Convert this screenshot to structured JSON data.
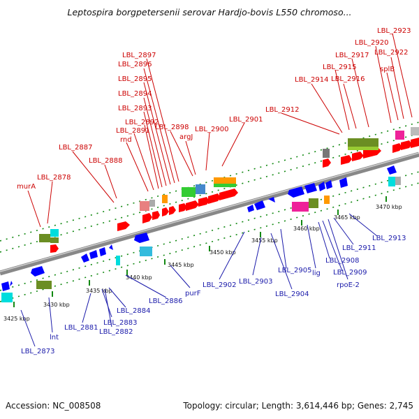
{
  "title": "Leptospira borgpetersenii serovar Hardjo-bovis L550 chromoso...",
  "footer": {
    "accession": "Accession: NC_008508",
    "summary": "Topology: circular; Length: 3,614,446 bp; Genes: 2,745"
  },
  "colors": {
    "forward_gene": "#ff0000",
    "reverse_gene": "#0000ff",
    "forward_label": "#cc0000",
    "reverse_label": "#1a1aaa",
    "backbone": "#888888",
    "tick": "#118811"
  },
  "ticks": [
    {
      "id": "t3425",
      "label": "3425 kbp"
    },
    {
      "id": "t3430",
      "label": "3430 kbp"
    },
    {
      "id": "t3435",
      "label": "3435 kbp"
    },
    {
      "id": "t3440",
      "label": "3440 kbp"
    },
    {
      "id": "t3445",
      "label": "3445 kbp"
    },
    {
      "id": "t3450",
      "label": "3450 kbp"
    },
    {
      "id": "t3455",
      "label": "3455 kbp"
    },
    {
      "id": "t3460",
      "label": "3460 kbp"
    },
    {
      "id": "t3465",
      "label": "3465 kbp"
    },
    {
      "id": "t3470",
      "label": "3470 kbp"
    }
  ],
  "top_labels": [
    {
      "id": "murA",
      "text": "murA"
    },
    {
      "id": "LBL_2878",
      "text": "LBL_2878"
    },
    {
      "id": "LBL_2887",
      "text": "LBL_2887"
    },
    {
      "id": "LBL_2888",
      "text": "LBL_2888"
    },
    {
      "id": "rnd",
      "text": "rnd"
    },
    {
      "id": "LBL_2891",
      "text": "LBL_2891"
    },
    {
      "id": "LBL_2892",
      "text": "LBL_2892"
    },
    {
      "id": "LBL_2893",
      "text": "LBL_2893"
    },
    {
      "id": "LBL_2894",
      "text": "LBL_2894"
    },
    {
      "id": "LBL_2895",
      "text": "LBL_2895"
    },
    {
      "id": "LBL_2896",
      "text": "LBL_2896"
    },
    {
      "id": "LBL_2897",
      "text": "LBL_2897"
    },
    {
      "id": "LBL_2898",
      "text": "LBL_2898"
    },
    {
      "id": "argJ",
      "text": "argJ"
    },
    {
      "id": "LBL_2900",
      "text": "LBL_2900"
    },
    {
      "id": "LBL_2901",
      "text": "LBL_2901"
    },
    {
      "id": "LBL_2912",
      "text": "LBL_2912"
    },
    {
      "id": "LBL_2914",
      "text": "LBL_2914"
    },
    {
      "id": "LBL_2915",
      "text": "LBL_2915"
    },
    {
      "id": "LBL_2916",
      "text": "LBL_2916"
    },
    {
      "id": "LBL_2917",
      "text": "LBL_2917"
    },
    {
      "id": "LBL_2920",
      "text": "LBL_2920"
    },
    {
      "id": "splB",
      "text": "splB"
    },
    {
      "id": "LBL_2922",
      "text": "LBL_2922"
    },
    {
      "id": "LBL_2923",
      "text": "LBL_2923"
    }
  ],
  "bottom_labels": [
    {
      "id": "LBL_2873",
      "text": "LBL_2873"
    },
    {
      "id": "lnt",
      "text": "lnt"
    },
    {
      "id": "LBL_2881",
      "text": "LBL_2881"
    },
    {
      "id": "LBL_2883",
      "text": "LBL_2883"
    },
    {
      "id": "LBL_2882",
      "text": "LBL_2882"
    },
    {
      "id": "LBL_2884",
      "text": "LBL_2884"
    },
    {
      "id": "LBL_2886",
      "text": "LBL_2886"
    },
    {
      "id": "purF",
      "text": "purF"
    },
    {
      "id": "LBL_2902",
      "text": "LBL_2902"
    },
    {
      "id": "LBL_2903",
      "text": "LBL_2903"
    },
    {
      "id": "LBL_2904",
      "text": "LBL_2904"
    },
    {
      "id": "LBL_2905",
      "text": "LBL_2905"
    },
    {
      "id": "lig",
      "text": "lig"
    },
    {
      "id": "LBL_2908",
      "text": "LBL_2908"
    },
    {
      "id": "LBL_2909",
      "text": "LBL_2909"
    },
    {
      "id": "rpoE-2",
      "text": "rpoE-2"
    },
    {
      "id": "LBL_2911",
      "text": "LBL_2911"
    },
    {
      "id": "LBL_2913",
      "text": "LBL_2913"
    }
  ]
}
